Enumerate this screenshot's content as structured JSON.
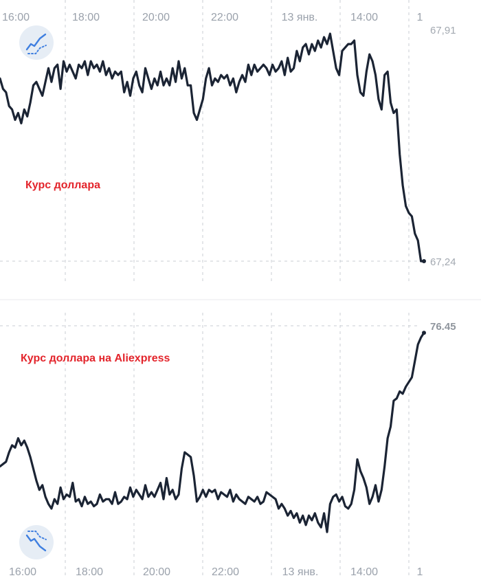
{
  "colors": {
    "line": "#1b2434",
    "grid": "#c9cdd3",
    "annotation": "#e3242b",
    "icon_bg": "#e6edf5",
    "icon_fg": "#3f7fe0",
    "tick": "#9aa1ab"
  },
  "chart_data": [
    {
      "type": "line",
      "name": "usd-rate",
      "annotation": "Курс доллара",
      "x_tick_labels": [
        "16:00",
        "18:00",
        "20:00",
        "22:00",
        "13 янв.",
        "14:00",
        "1"
      ],
      "y_labels": {
        "high": "67,91",
        "low": "67,24"
      },
      "ylim": [
        67.24,
        67.91
      ],
      "grid": true,
      "icon": "trend-up-icon",
      "series": [
        {
          "values": [
            67.77,
            67.74,
            67.73,
            67.69,
            67.68,
            67.65,
            67.67,
            67.64,
            67.68,
            67.66,
            67.7,
            67.75,
            67.76,
            67.74,
            67.72,
            67.76,
            67.8,
            67.76,
            67.8,
            67.81,
            67.74,
            67.82,
            67.79,
            67.81,
            67.79,
            67.77,
            67.81,
            67.8,
            67.82,
            67.78,
            67.82,
            67.8,
            67.81,
            67.79,
            67.82,
            67.78,
            67.8,
            67.77,
            67.79,
            67.78,
            67.79,
            67.73,
            67.76,
            67.72,
            67.77,
            67.79,
            67.75,
            67.73,
            67.8,
            67.77,
            67.74,
            67.77,
            67.75,
            67.79,
            67.75,
            67.77,
            67.75,
            67.8,
            67.76,
            67.82,
            67.77,
            67.8,
            67.75,
            67.75,
            67.67,
            67.65,
            67.68,
            67.71,
            67.77,
            67.8,
            67.75,
            67.77,
            67.76,
            67.78,
            67.77,
            67.78,
            67.75,
            67.77,
            67.73,
            67.76,
            67.78,
            67.76,
            67.81,
            67.78,
            67.81,
            67.79,
            67.8,
            67.81,
            67.8,
            67.78,
            67.81,
            67.79,
            67.8,
            67.82,
            67.78,
            67.83,
            67.79,
            67.8,
            67.85,
            67.82,
            67.86,
            67.87,
            67.84,
            67.87,
            67.85,
            67.88,
            67.86,
            67.89,
            67.87,
            67.9,
            67.85,
            67.8,
            67.78,
            67.85,
            67.86,
            67.87,
            67.87,
            67.88,
            67.78,
            67.73,
            67.72,
            67.79,
            67.84,
            67.82,
            67.78,
            67.71,
            67.68,
            67.78,
            67.79,
            67.7,
            67.67,
            67.68,
            67.55,
            67.46,
            67.4,
            67.38,
            67.37,
            67.32,
            67.3,
            67.24,
            67.24
          ]
        }
      ]
    },
    {
      "type": "line",
      "name": "usd-rate-aliexpress",
      "annotation": "Курс доллара на Aliexpress",
      "x_tick_labels": [
        "16:00",
        "18:00",
        "20:00",
        "22:00",
        "13 янв.",
        "14:00",
        "1"
      ],
      "y_labels": {
        "high": "76.45"
      },
      "grid": true,
      "icon": "trend-down-icon",
      "series": [
        {
          "values": [
            0.4,
            0.41,
            0.42,
            0.46,
            0.49,
            0.48,
            0.52,
            0.49,
            0.51,
            0.48,
            0.44,
            0.39,
            0.34,
            0.3,
            0.32,
            0.27,
            0.24,
            0.22,
            0.26,
            0.24,
            0.31,
            0.26,
            0.28,
            0.27,
            0.33,
            0.25,
            0.26,
            0.23,
            0.27,
            0.24,
            0.25,
            0.23,
            0.24,
            0.28,
            0.25,
            0.26,
            0.26,
            0.24,
            0.29,
            0.24,
            0.25,
            0.27,
            0.26,
            0.31,
            0.27,
            0.3,
            0.28,
            0.26,
            0.32,
            0.27,
            0.29,
            0.27,
            0.3,
            0.33,
            0.26,
            0.35,
            0.28,
            0.3,
            0.26,
            0.28,
            0.39,
            0.46,
            0.45,
            0.44,
            0.36,
            0.25,
            0.27,
            0.3,
            0.27,
            0.3,
            0.29,
            0.3,
            0.26,
            0.29,
            0.28,
            0.27,
            0.3,
            0.25,
            0.28,
            0.26,
            0.25,
            0.24,
            0.27,
            0.26,
            0.25,
            0.27,
            0.24,
            0.25,
            0.29,
            0.28,
            0.27,
            0.26,
            0.22,
            0.24,
            0.22,
            0.19,
            0.21,
            0.18,
            0.2,
            0.16,
            0.19,
            0.15,
            0.19,
            0.17,
            0.2,
            0.16,
            0.14,
            0.2,
            0.12,
            0.24,
            0.27,
            0.28,
            0.25,
            0.27,
            0.23,
            0.22,
            0.24,
            0.3,
            0.43,
            0.38,
            0.35,
            0.31,
            0.24,
            0.27,
            0.32,
            0.25,
            0.3,
            0.4,
            0.52,
            0.57,
            0.68,
            0.69,
            0.72,
            0.71,
            0.74,
            0.76,
            0.78,
            0.85,
            0.92,
            0.95,
            0.97
          ]
        }
      ]
    }
  ]
}
